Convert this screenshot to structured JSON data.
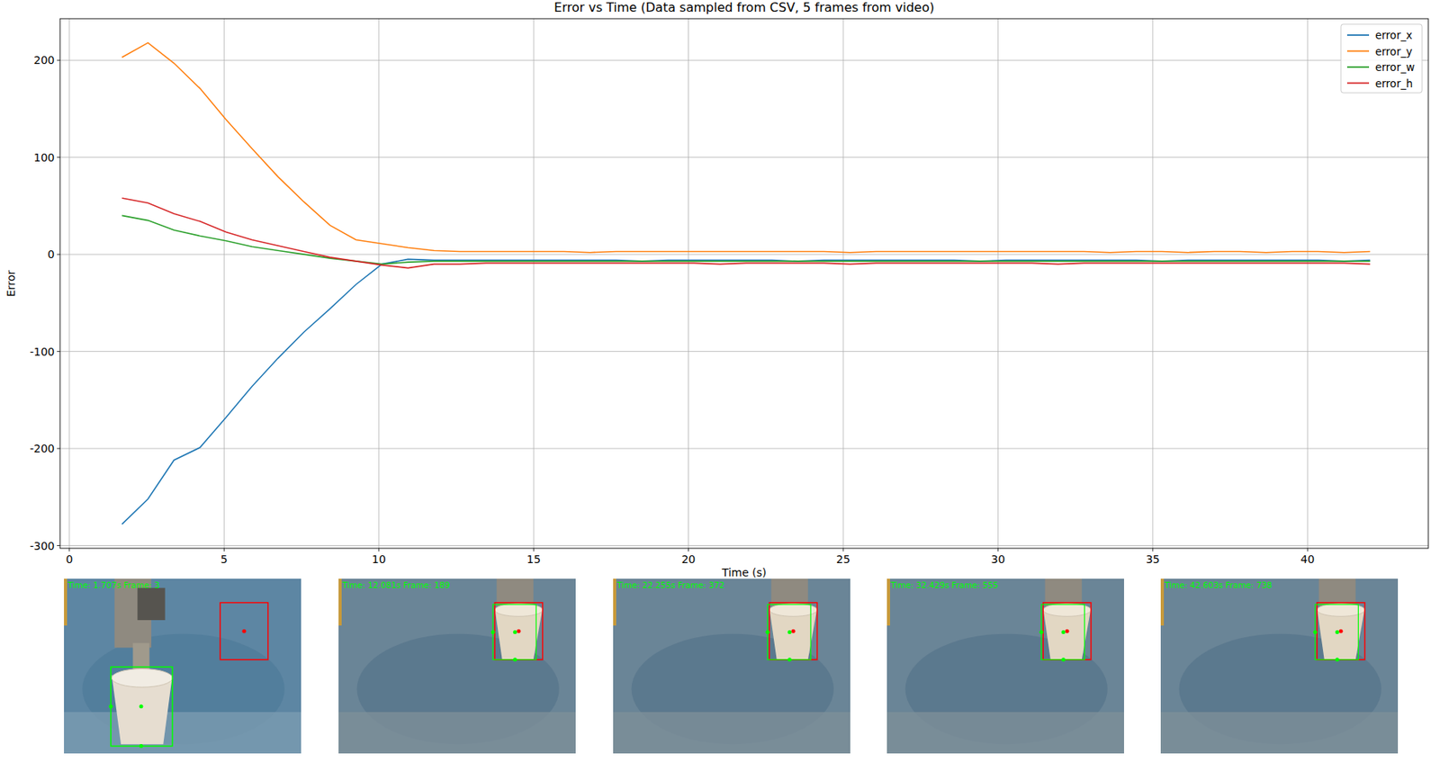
{
  "chart_data": {
    "type": "line",
    "title": "Error vs Time (Data sampled from CSV, 5 frames from video)",
    "x_label": "Time (s)",
    "y_label": "Error",
    "x": [
      1.7,
      2.54,
      3.38,
      4.22,
      5.06,
      5.9,
      6.74,
      7.58,
      8.42,
      9.26,
      10.1,
      10.94,
      11.78,
      12.62,
      13.46,
      14.3,
      15.14,
      15.98,
      16.82,
      17.66,
      18.5,
      19.34,
      20.18,
      21.02,
      21.86,
      22.7,
      23.54,
      24.38,
      25.22,
      26.06,
      26.9,
      27.74,
      28.58,
      29.42,
      30.26,
      31.1,
      31.94,
      32.78,
      33.62,
      34.46,
      35.3,
      36.14,
      36.98,
      37.82,
      38.66,
      39.5,
      40.34,
      41.18,
      42.02
    ],
    "series": [
      {
        "name": "error_x",
        "color": "#1f77b4",
        "values": [
          -278,
          -252,
          -212,
          -199,
          -168,
          -136,
          -107,
          -80,
          -56,
          -31,
          -10,
          -5,
          -6,
          -6,
          -6,
          -6,
          -6,
          -6,
          -6,
          -6,
          -7,
          -6,
          -6,
          -6,
          -6,
          -6,
          -7,
          -6,
          -6,
          -6,
          -6,
          -6,
          -6,
          -7,
          -6,
          -6,
          -6,
          -6,
          -6,
          -6,
          -7,
          -6,
          -6,
          -6,
          -6,
          -6,
          -6,
          -7,
          -6
        ]
      },
      {
        "name": "error_y",
        "color": "#ff7f0e",
        "values": [
          203,
          218,
          197,
          171,
          139,
          109,
          80,
          54,
          30,
          15,
          11,
          7,
          4,
          3,
          3,
          3,
          3,
          3,
          2,
          3,
          3,
          3,
          3,
          3,
          3,
          3,
          3,
          3,
          2,
          3,
          3,
          3,
          3,
          3,
          3,
          3,
          3,
          3,
          2,
          3,
          3,
          2,
          3,
          3,
          2,
          3,
          3,
          2,
          3
        ]
      },
      {
        "name": "error_w",
        "color": "#2ca02c",
        "values": [
          40,
          35,
          25,
          19,
          14,
          8,
          4,
          0,
          -4,
          -7,
          -10,
          -8,
          -7,
          -7,
          -7,
          -7,
          -7,
          -7,
          -7,
          -7,
          -7,
          -7,
          -7,
          -7,
          -7,
          -7,
          -7,
          -7,
          -7,
          -7,
          -7,
          -7,
          -7,
          -7,
          -7,
          -7,
          -7,
          -7,
          -7,
          -7,
          -7,
          -7,
          -7,
          -7,
          -7,
          -7,
          -7,
          -7,
          -7
        ]
      },
      {
        "name": "error_h",
        "color": "#d62728",
        "values": [
          58,
          53,
          42,
          34,
          23,
          15,
          9,
          3,
          -3,
          -7,
          -11,
          -14,
          -10,
          -10,
          -9,
          -9,
          -9,
          -9,
          -9,
          -9,
          -9,
          -9,
          -9,
          -10,
          -9,
          -9,
          -9,
          -9,
          -10,
          -9,
          -9,
          -9,
          -9,
          -9,
          -9,
          -9,
          -10,
          -9,
          -9,
          -9,
          -9,
          -9,
          -9,
          -9,
          -9,
          -9,
          -9,
          -9,
          -10
        ]
      }
    ],
    "xlim": [
      -0.3,
      43.9
    ],
    "ylim": [
      -302.8,
      242.8
    ],
    "xticks": [
      0,
      5,
      10,
      15,
      20,
      25,
      30,
      35,
      40
    ],
    "yticks": [
      -300,
      -200,
      -100,
      0,
      100,
      200
    ],
    "grid": true,
    "legend": "upper right"
  },
  "frames": [
    {
      "label": "Time: 1.707s Frame: 3"
    },
    {
      "label": "Time: 12.081s Frame: 189"
    },
    {
      "label": "Time: 22.255s Frame: 372"
    },
    {
      "label": "Time: 32.429s Frame: 555"
    },
    {
      "label": "Time: 42.603s Frame: 738"
    }
  ]
}
